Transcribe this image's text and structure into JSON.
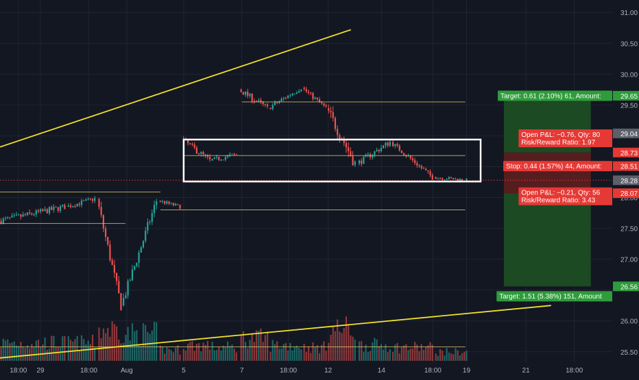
{
  "colors": {
    "background": "#131722",
    "grid": "#1f2533",
    "up": "#26a69a",
    "down": "#ef5350",
    "trendline": "#f2e12a",
    "box": "#ffffff",
    "hline": "#d9c86a",
    "target": "#2e9c3b",
    "target_zone": "#1c4d23",
    "stop": "#e53935",
    "stop_zone": "#5a1d20",
    "axis_text": "#b2b5be"
  },
  "chart_data": {
    "type": "candlestick",
    "title": "",
    "xlabel": "",
    "ylabel": "",
    "ylim": [
      25.32,
      31.18
    ],
    "grid": true,
    "y_ticks": [
      "31.00",
      "30.50",
      "30.00",
      "29.50",
      "28.50",
      "28.00",
      "27.50",
      "27.00",
      "26.00",
      "25.50"
    ],
    "x_ticks": [
      "18:00",
      "29",
      "18:00",
      "Aug",
      "5",
      "7",
      "18:00",
      "12",
      "14",
      "18:00",
      "19",
      "21",
      "18:00"
    ],
    "x_tick_pos": [
      0.03,
      0.066,
      0.145,
      0.207,
      0.3,
      0.395,
      0.471,
      0.536,
      0.623,
      0.707,
      0.762,
      0.859,
      0.938
    ],
    "volume_note": "volume bars plotted in lower band, relative scale",
    "segments": [
      {
        "from": 0.0,
        "to": 0.11,
        "start": 27.62,
        "end": 27.85,
        "vol": 0.08,
        "amp": 0.05
      },
      {
        "from": 0.11,
        "to": 0.16,
        "start": 27.85,
        "end": 27.98,
        "vol": 0.08,
        "amp": 0.04
      },
      {
        "from": 0.16,
        "to": 0.2,
        "start": 27.98,
        "end": 26.25,
        "vol": 0.14,
        "amp": 0.09
      },
      {
        "from": 0.2,
        "to": 0.26,
        "start": 26.25,
        "end": 27.95,
        "vol": 0.12,
        "amp": 0.08
      },
      {
        "from": 0.26,
        "to": 0.298,
        "start": 27.95,
        "end": 27.85,
        "vol": 0.05,
        "amp": 0.03
      },
      {
        "from": 0.298,
        "to": 0.345,
        "start": 28.95,
        "end": 28.6,
        "vol": 0.07,
        "amp": 0.05
      },
      {
        "from": 0.345,
        "to": 0.39,
        "start": 28.6,
        "end": 28.7,
        "vol": 0.06,
        "amp": 0.04
      },
      {
        "from": 0.392,
        "to": 0.44,
        "start": 29.75,
        "end": 29.45,
        "vol": 0.1,
        "amp": 0.05
      },
      {
        "from": 0.44,
        "to": 0.495,
        "start": 29.45,
        "end": 29.78,
        "vol": 0.07,
        "amp": 0.04
      },
      {
        "from": 0.495,
        "to": 0.535,
        "start": 29.78,
        "end": 29.45,
        "vol": 0.06,
        "amp": 0.04
      },
      {
        "from": 0.535,
        "to": 0.585,
        "start": 29.45,
        "end": 28.55,
        "vol": 0.14,
        "amp": 0.1
      },
      {
        "from": 0.585,
        "to": 0.64,
        "start": 28.55,
        "end": 28.9,
        "vol": 0.07,
        "amp": 0.05
      },
      {
        "from": 0.64,
        "to": 0.71,
        "start": 28.9,
        "end": 28.33,
        "vol": 0.06,
        "amp": 0.04
      },
      {
        "from": 0.71,
        "to": 0.765,
        "start": 28.33,
        "end": 28.28,
        "vol": 0.04,
        "amp": 0.03
      }
    ],
    "trendlines": [
      {
        "x1": 0.0,
        "y1": 28.82,
        "x2": 0.573,
        "y2": 30.72
      },
      {
        "x1": 0.0,
        "y1": 25.4,
        "x2": 0.9,
        "y2": 26.25
      }
    ],
    "range_box": {
      "x1": 0.3,
      "x2": 0.785,
      "top": 28.94,
      "bottom": 28.26
    },
    "horizontal_lines": [
      {
        "x1": 0.0,
        "x2": 0.262,
        "y": 28.09
      },
      {
        "x1": 0.262,
        "x2": 0.76,
        "y": 27.8
      },
      {
        "x1": 0.395,
        "x2": 0.76,
        "y": 29.55
      },
      {
        "x1": 0.3,
        "x2": 0.76,
        "y": 28.68
      },
      {
        "x1": 0.0,
        "x2": 0.205,
        "y": 27.58
      },
      {
        "x1": 0.0,
        "x2": 0.76,
        "y": 25.58
      }
    ],
    "position_tool": {
      "x1": 0.823,
      "x2": 0.965,
      "entry": 28.28,
      "short_stop": 28.73,
      "short_target": 29.65,
      "long_stop": 28.07,
      "long_target": 26.56
    },
    "price_labels": [
      {
        "value": 29.65,
        "text": "29.65",
        "kind": "target"
      },
      {
        "value": 29.04,
        "text": "29.04",
        "kind": "gray"
      },
      {
        "value": 28.73,
        "text": "28.73",
        "kind": "stop"
      },
      {
        "value": 28.51,
        "text": "28.51",
        "kind": "stop"
      },
      {
        "value": 28.28,
        "text": "28.28",
        "kind": "gray"
      },
      {
        "value": 28.07,
        "text": "28.07",
        "kind": "stop"
      },
      {
        "value": 26.56,
        "text": "26.56",
        "kind": "target"
      }
    ],
    "info_labels": [
      {
        "value": 29.65,
        "lines": [
          "Target: 0.61 (2.10%) 61, Amount:"
        ],
        "kind": "target",
        "anchor": 0.813
      },
      {
        "value": 28.96,
        "lines": [
          "Open P&L: −0.76, Qty: 80",
          "Risk/Reward Ratio: 1.97"
        ],
        "kind": "stop",
        "anchor": 0.847
      },
      {
        "value": 28.51,
        "lines": [
          "Stop: 0.44 (1.57%) 44, Amount:"
        ],
        "kind": "stop",
        "anchor": 0.822
      },
      {
        "value": 28.02,
        "lines": [
          "Open P&L: −0.21, Qty: 56",
          "Risk/Reward Ratio: 3.43"
        ],
        "kind": "stop",
        "anchor": 0.847
      },
      {
        "value": 26.4,
        "lines": [
          "Target: 1.51 (5.38%) 151, Amount"
        ],
        "kind": "target",
        "anchor": 0.811
      }
    ]
  }
}
